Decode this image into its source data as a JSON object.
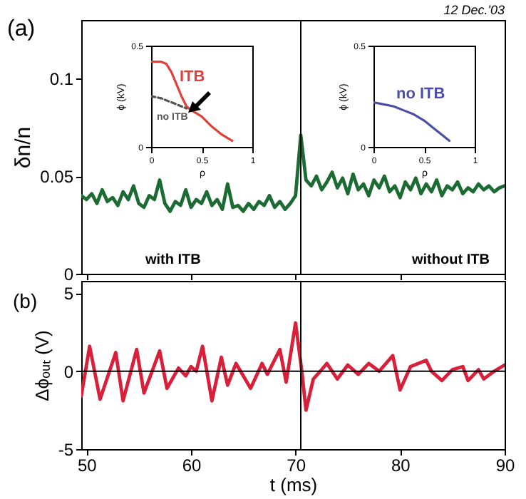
{
  "chart_data": [
    {
      "type": "line",
      "title": "(a)",
      "ylabel": "δn/n",
      "xlim": [
        49.5,
        90
      ],
      "xticks": [
        50,
        60,
        70,
        80,
        90
      ],
      "ylim": [
        0,
        0.13
      ],
      "yticks": [
        0,
        0.05,
        0.1
      ],
      "tick_labels": "y",
      "grid": false,
      "x": [
        49.5,
        50,
        50.5,
        51,
        51.5,
        52,
        52.5,
        53,
        53.5,
        54,
        54.5,
        55,
        55.5,
        56,
        56.5,
        57,
        57.5,
        58,
        58.5,
        59,
        59.5,
        60,
        60.5,
        61,
        61.5,
        62,
        62.5,
        63,
        63.5,
        64,
        64.5,
        65,
        65.5,
        66,
        66.5,
        67,
        67.5,
        68,
        68.5,
        69,
        69.5,
        70,
        70.5,
        71,
        71.5,
        72,
        72.5,
        73,
        73.5,
        74,
        74.5,
        75,
        75.5,
        76,
        76.5,
        77,
        77.5,
        78,
        78.5,
        79,
        79.5,
        80,
        80.5,
        81,
        81.5,
        82,
        82.5,
        83,
        83.5,
        84,
        84.5,
        85,
        85.5,
        86,
        86.5,
        87,
        87.5,
        88,
        88.5,
        89,
        89.5,
        90
      ],
      "series": [
        {
          "color": "#1b6b33",
          "values": [
            0.04,
            0.038,
            0.041,
            0.036,
            0.043,
            0.037,
            0.039,
            0.035,
            0.042,
            0.038,
            0.045,
            0.036,
            0.034,
            0.04,
            0.038,
            0.048,
            0.036,
            0.032,
            0.037,
            0.035,
            0.043,
            0.034,
            0.038,
            0.036,
            0.042,
            0.035,
            0.038,
            0.033,
            0.046,
            0.034,
            0.035,
            0.032,
            0.036,
            0.033,
            0.037,
            0.035,
            0.04,
            0.034,
            0.037,
            0.033,
            0.036,
            0.04,
            0.071,
            0.048,
            0.045,
            0.05,
            0.043,
            0.047,
            0.052,
            0.044,
            0.049,
            0.041,
            0.051,
            0.043,
            0.046,
            0.04,
            0.048,
            0.044,
            0.05,
            0.042,
            0.045,
            0.039,
            0.047,
            0.043,
            0.049,
            0.041,
            0.046,
            0.042,
            0.048,
            0.04,
            0.045,
            0.043,
            0.047,
            0.041,
            0.044,
            0.042,
            0.046,
            0.043,
            0.045,
            0.042,
            0.044,
            0.045
          ]
        }
      ],
      "ref_lines": [
        {
          "axis": "x",
          "value": 70.5
        }
      ],
      "annotations": [
        "12 Dec.'03",
        "with ITB",
        "without ITB"
      ]
    },
    {
      "type": "line",
      "xlabel": "ρ",
      "ylabel": "ϕ (kV)",
      "xlim": [
        0,
        1
      ],
      "xticks": [
        0,
        0.5,
        1
      ],
      "ylim": [
        0,
        0.5
      ],
      "yticks": [
        0,
        0.5
      ],
      "grid": false,
      "series": [
        {
          "color": "#e0403a",
          "x": [
            0,
            0.1,
            0.15,
            0.2,
            0.25,
            0.3,
            0.35,
            0.4,
            0.5,
            0.6,
            0.7,
            0.8
          ],
          "values": [
            0.42,
            0.42,
            0.41,
            0.37,
            0.31,
            0.25,
            0.2,
            0.18,
            0.15,
            0.1,
            0.06,
            0.03
          ]
        },
        {
          "color": "#555555",
          "line_style": "dashed",
          "x": [
            0,
            0.1,
            0.2,
            0.3,
            0.35
          ],
          "values": [
            0.25,
            0.24,
            0.22,
            0.2,
            0.19
          ]
        }
      ],
      "annotations": [
        "ITB",
        "no ITB"
      ]
    },
    {
      "type": "line",
      "xlabel": "ρ",
      "ylabel": "ϕ (kV)",
      "xlim": [
        0,
        1
      ],
      "xticks": [
        0,
        0.5,
        1
      ],
      "ylim": [
        0,
        0.5
      ],
      "yticks": [
        0,
        0.5
      ],
      "grid": false,
      "series": [
        {
          "color": "#4b4fa6",
          "x": [
            0,
            0.1,
            0.2,
            0.3,
            0.4,
            0.5,
            0.6,
            0.7,
            0.75
          ],
          "values": [
            0.22,
            0.21,
            0.2,
            0.18,
            0.16,
            0.13,
            0.09,
            0.05,
            0.03
          ]
        }
      ],
      "annotations": [
        "no ITB"
      ]
    },
    {
      "type": "line",
      "title": "(b)",
      "xlabel": "t (ms)",
      "ylabel": "Δϕₒᵤₜ (V)",
      "xlim": [
        49.5,
        90
      ],
      "xticks": [
        50,
        60,
        70,
        80,
        90
      ],
      "ylim": [
        -5,
        5.8
      ],
      "yticks": [
        -5,
        0,
        5
      ],
      "grid": false,
      "series": [
        {
          "color": "#d8203a",
          "x": [
            49.5,
            50.3,
            51.3,
            52.8,
            53.5,
            54.8,
            55.5,
            57,
            57.7,
            58.8,
            59.5,
            60,
            60.5,
            61.1,
            62,
            62.9,
            63.5,
            64.3,
            65.7,
            66.8,
            67.3,
            68.5,
            69.1,
            70,
            70.6,
            71,
            71.7,
            72.5,
            73,
            74,
            75,
            76,
            77,
            78,
            79.3,
            80,
            81,
            82.5,
            83,
            84,
            85,
            86,
            86.5,
            87.5,
            88,
            89,
            90
          ],
          "values": [
            -1.6,
            1.6,
            -1.8,
            1.2,
            -1.9,
            1.4,
            -1.4,
            1.3,
            -1.1,
            0.2,
            -0.3,
            0.3,
            0,
            1.6,
            -1.9,
            0.9,
            -0.9,
            0.5,
            -1.1,
            0.5,
            -0.2,
            1.4,
            -0.7,
            3.1,
            0,
            -2.5,
            -0.5,
            0.1,
            0.5,
            -0.5,
            0.4,
            -0.2,
            0.5,
            0,
            1.0,
            -1.2,
            0.3,
            0.7,
            0,
            -0.6,
            0.1,
            0.3,
            -0.6,
            0.1,
            -0.5,
            0,
            0.4
          ]
        }
      ],
      "ref_lines": [
        {
          "axis": "x",
          "value": 70.5
        },
        {
          "axis": "y",
          "value": 0
        }
      ]
    }
  ]
}
